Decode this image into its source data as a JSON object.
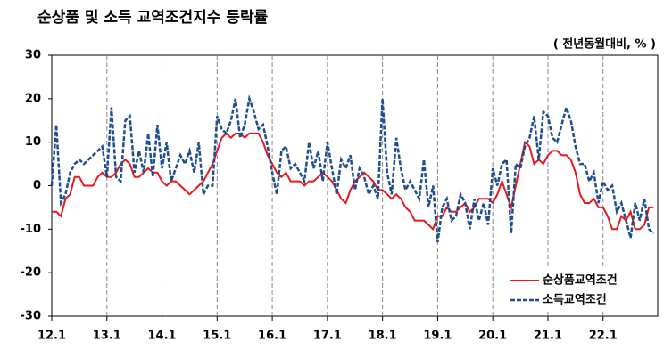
{
  "chart_data": {
    "type": "line",
    "title": "순상품 및 소득 교역조건지수 등락률",
    "unit_label": "( 전년동월대비, % )",
    "categories": [
      "12.1",
      null,
      null,
      null,
      null,
      null,
      null,
      null,
      null,
      null,
      null,
      null,
      "13.1",
      null,
      null,
      null,
      null,
      null,
      null,
      null,
      null,
      null,
      null,
      null,
      "14.1",
      null,
      null,
      null,
      null,
      null,
      null,
      null,
      null,
      null,
      null,
      null,
      "15.1",
      null,
      null,
      null,
      null,
      null,
      null,
      null,
      null,
      null,
      null,
      null,
      "16.1",
      null,
      null,
      null,
      null,
      null,
      null,
      null,
      null,
      null,
      null,
      null,
      "17.1",
      null,
      null,
      null,
      null,
      null,
      null,
      null,
      null,
      null,
      null,
      null,
      "18.1",
      null,
      null,
      null,
      null,
      null,
      null,
      null,
      null,
      null,
      null,
      null,
      "19.1",
      null,
      null,
      null,
      null,
      null,
      null,
      null,
      null,
      null,
      null,
      null,
      "20.1",
      null,
      null,
      null,
      null,
      null,
      null,
      null,
      null,
      null,
      null,
      null,
      "21.1",
      null,
      null,
      null,
      null,
      null,
      null,
      null,
      null,
      null,
      null,
      null,
      "22.1",
      null,
      null,
      null,
      null,
      null,
      null,
      null,
      null,
      null,
      null,
      null
    ],
    "series": [
      {
        "name": "순상품교역조건",
        "color": "#e8191c",
        "dash": false,
        "values": [
          -6,
          -6,
          -7,
          -3,
          -2,
          2,
          2,
          0,
          0,
          0,
          2,
          3,
          2,
          2,
          3,
          5,
          6,
          5,
          2,
          2,
          3,
          4,
          3,
          3,
          1,
          0,
          1,
          1,
          0,
          -1,
          -2,
          -1,
          0,
          1,
          3,
          5,
          8,
          11,
          12,
          11,
          12,
          12,
          11,
          12,
          12,
          12,
          10,
          7,
          5,
          3,
          2,
          3,
          1,
          1,
          1,
          0,
          1,
          1,
          2,
          3,
          2,
          1,
          -1,
          -3,
          -4,
          -1,
          1,
          2,
          3,
          2,
          1,
          -1,
          -1,
          -2,
          -3,
          -2,
          -3,
          -5,
          -6,
          -8,
          -8,
          -8,
          -9,
          -10,
          -7,
          -7,
          -5,
          -6,
          -6,
          -5,
          -4,
          -6,
          -5,
          -3,
          -3,
          -3,
          -4,
          -2,
          1,
          -2,
          -5,
          0,
          5,
          10,
          9,
          5,
          6,
          5,
          7,
          8,
          8,
          7,
          7,
          6,
          3,
          -2,
          -4,
          -4,
          -3,
          -5,
          -5,
          -7,
          -10,
          -10,
          -7,
          -8,
          -6,
          -10,
          -10,
          -9,
          -5,
          -5
        ]
      },
      {
        "name": "소득교역조건",
        "color": "#1f4e8c",
        "dash": true,
        "values": [
          0,
          14,
          -4,
          -2,
          3,
          5,
          6,
          5,
          6,
          7,
          8,
          9,
          2,
          18,
          2,
          1,
          15,
          16,
          3,
          8,
          3,
          12,
          2,
          14,
          4,
          10,
          1,
          4,
          7,
          5,
          8,
          3,
          10,
          -2,
          0,
          0,
          16,
          13,
          12,
          15,
          20,
          11,
          14,
          20,
          17,
          13,
          14,
          9,
          3,
          -2,
          8,
          9,
          4,
          5,
          3,
          1,
          10,
          4,
          8,
          1,
          10,
          4,
          -2,
          6,
          4,
          7,
          -1,
          4,
          2,
          -2,
          0,
          -3,
          20,
          3,
          -2,
          11,
          4,
          -1,
          1,
          -1,
          -3,
          6,
          -5,
          0,
          -13,
          -5,
          -3,
          -8,
          -7,
          -2,
          -4,
          -10,
          -3,
          -8,
          -4,
          -9,
          4,
          0,
          5,
          6,
          -11,
          5,
          4,
          9,
          11,
          16,
          6,
          17,
          16,
          11,
          10,
          14,
          18,
          15,
          9,
          5,
          5,
          1,
          3,
          -4,
          1,
          -1,
          0,
          -6,
          -4,
          -8,
          -12,
          -4,
          -8,
          -3,
          -10,
          -11
        ]
      }
    ],
    "ylim": [
      -30,
      30
    ],
    "yticks": [
      -30,
      -20,
      -10,
      0,
      10,
      20,
      30
    ],
    "vertical_grid": true,
    "legend": "lower right"
  }
}
